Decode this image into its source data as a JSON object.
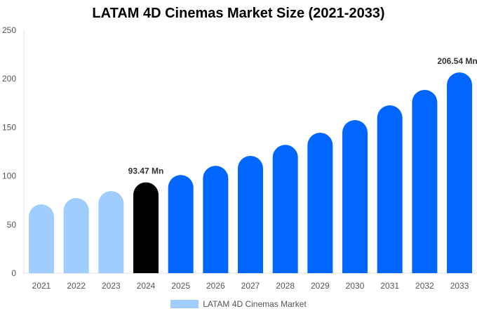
{
  "chart_data": {
    "type": "bar",
    "title": "LATAM 4D Cinemas Market Size (2021-2033)",
    "categories": [
      "2021",
      "2022",
      "2023",
      "2024",
      "2025",
      "2026",
      "2027",
      "2028",
      "2029",
      "2030",
      "2031",
      "2032",
      "2033"
    ],
    "series": [
      {
        "name": "LATAM 4D Cinemas Market",
        "values": [
          70.8,
          77.3,
          84.5,
          93.47,
          101.0,
          110.5,
          120.7,
          132.0,
          144.5,
          157.5,
          172.7,
          188.6,
          206.54
        ]
      }
    ],
    "data_labels": {
      "3": "93.47 Mn",
      "12": "206.54 Mn"
    },
    "ylim": [
      0,
      250
    ],
    "yticks": [
      0,
      50,
      100,
      150,
      200,
      250
    ],
    "xlabel": "",
    "ylabel": "",
    "grid": false,
    "legend": "bottom",
    "colors": {
      "historical": "#a0cdfd",
      "base_year": "#000000",
      "forecast": "#0066ff"
    }
  }
}
